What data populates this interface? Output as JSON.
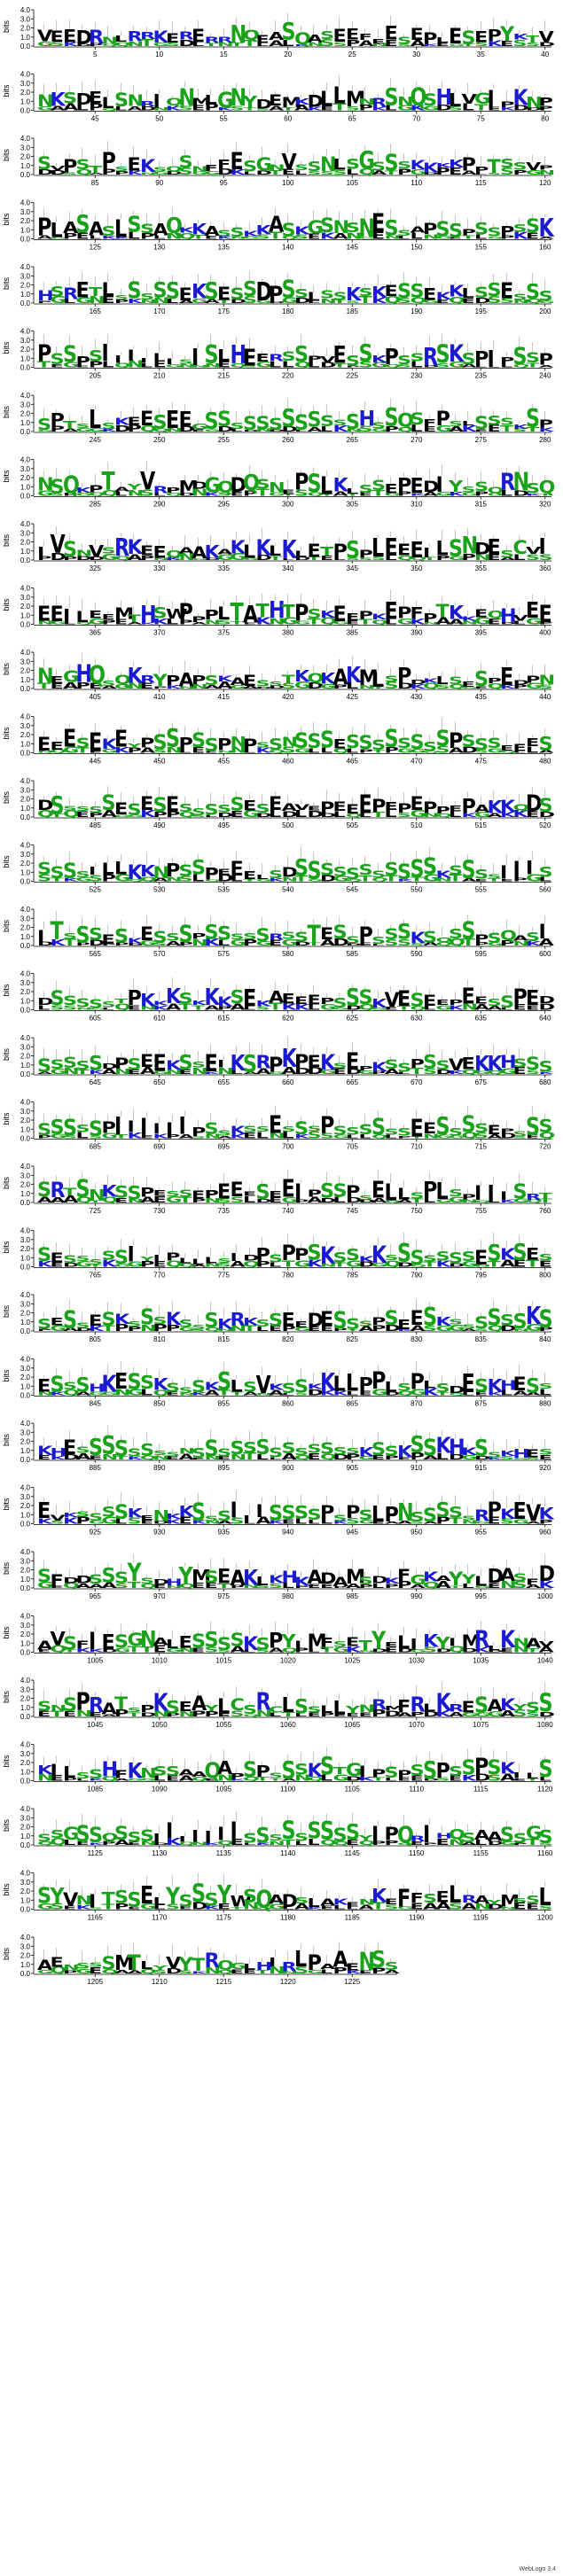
{
  "chart_data": {
    "type": "sequence-logo",
    "ylabel": "bits",
    "ytick_labels": [
      "0.0",
      "1.0",
      "2.0",
      "3.0",
      "4.0"
    ],
    "ylim": [
      0,
      4.3
    ],
    "positions_per_row": 40,
    "total_positions": 1228,
    "credit": "WebLogo 3.4",
    "colors": {
      "hydrophobic": "#000000",
      "polar": "#1aa31a",
      "basic": "#1a1ad0",
      "acidic": "#000000"
    },
    "rows": [
      {
        "start": 1,
        "ticks": [
          "5",
          "10",
          "15",
          "20",
          "25",
          "30",
          "35",
          "40"
        ],
        "seq": "VEEDRNLRRKERERRNQEASQASEEFEESEPLESEPYKT"
      },
      {
        "start": 41,
        "ticks": [
          "45",
          "50",
          "55",
          "60",
          "65",
          "70",
          "75",
          "80"
        ],
        "seq": "NKSDELSNRIQNMLGNYDEMKDLLMNRSNQSHLVGIPKNP"
      },
      {
        "start": 81,
        "ticks": [
          "85",
          "90",
          "95",
          "100",
          "105",
          "110",
          "115",
          "120"
        ],
        "seq": "SVPSTPSEKSQSNFFESGNVSSNLSGSSSKKKKPPTS"
      },
      {
        "start": 121,
        "ticks": [
          "125",
          "130",
          "135",
          "140",
          "145",
          "150",
          "155",
          "160"
        ],
        "seq": "PLASASLSSAQKKASSKKASKGSNSNESSAPSSPSSPSSK"
      },
      {
        "start": 161,
        "ticks": [
          "165",
          "170",
          "175",
          "180",
          "185",
          "190",
          "195",
          "200"
        ],
        "seq": "HSRETLSSSSSEKSESSDPSSLSSKSKESSEKKLSSESSS"
      },
      {
        "start": 201,
        "ticks": [
          "205",
          "210",
          "215",
          "220",
          "225",
          "230",
          "235",
          "240"
        ],
        "seq": "PSSPSIIIIIISISLHEERSSPVESSKPSSRSKSPI"
      },
      {
        "start": 241,
        "ticks": [
          "245",
          "250",
          "255",
          "260",
          "265",
          "270",
          "275",
          "280"
        ],
        "seq": "SPTSLSKEESEEGSSSSSSSSSSSSHSSQSFPSLSSSK"
      },
      {
        "start": 281,
        "ticks": [
          "285",
          "290",
          "295",
          "300",
          "305",
          "310",
          "315",
          "320"
        ],
        "seq": "NSQKPTAYVRPMDGQDQSNEPSLKLSSEPEDIYSSQR"
      },
      {
        "start": 321,
        "ticks": [
          "325",
          "330",
          "335",
          "340",
          "345",
          "350",
          "355",
          "360"
        ],
        "seq": "IVSNVSRKEEQAAKAKLKLKLETPSPLEEEILSNDESCV"
      },
      {
        "start": 361,
        "ticks": [
          "365",
          "370",
          "375",
          "380",
          "385",
          "390",
          "395",
          "400"
        ],
        "seq": "EEILEEMTHSWPPPLTATHTPSKEEPKEPFPTKKEQHV"
      },
      {
        "start": 401,
        "ticks": [
          "405",
          "410",
          "415",
          "420",
          "425",
          "430",
          "435",
          "440"
        ],
        "seq": "NEGHQSQKRYPAPSKAESSTKQKAKMLSPDKLSESPEDP"
      },
      {
        "start": 441,
        "ticks": [
          "445",
          "450",
          "455",
          "460",
          "465",
          "470",
          "475",
          "480"
        ],
        "seq": "EEESEKEYPSSPSSPNPSSNSSSESSSSSSSSPSSS"
      },
      {
        "start": 481,
        "ticks": [
          "485",
          "490",
          "495",
          "500",
          "505",
          "510",
          "515",
          "520"
        ],
        "seq": "DSSSSSESESESSSSSESEAVEPEEEPEPEPPEPAKKQ"
      },
      {
        "start": 521,
        "ticks": [
          "525",
          "530",
          "535",
          "540",
          "545",
          "550",
          "555",
          "560"
        ],
        "seq": "SSSSILLKKNPSSPEEELSDSSSSSSSSSSSKSSSSIII"
      },
      {
        "start": 561,
        "ticks": [
          "565",
          "570",
          "575",
          "580",
          "585",
          "590",
          "595",
          "600"
        ],
        "seq": "ITSSSESKESSSPSSSSSRSSTESSPSSSKSQSSPSQAS"
      },
      {
        "start": 601,
        "ticks": [
          "605",
          "610",
          "615",
          "620",
          "625",
          "630",
          "635",
          "640"
        ],
        "seq": "DSSSSSTPKKKSKKKSEKAEEEPSSSKVESEEPEESSPE"
      },
      {
        "start": 641,
        "ticks": [
          "645",
          "650",
          "655",
          "660",
          "665",
          "670",
          "675",
          "680"
        ],
        "seq": "SSSSSDPSEEKSSEIKSRPKPEKSEPKSSPSSVEKKHSS"
      },
      {
        "start": 681,
        "ticks": [
          "685",
          "690",
          "695",
          "700",
          "705",
          "710",
          "715",
          "720"
        ],
        "seq": "SSSSSPIIIIIIPSSKSSESSSPSSSSSSEESSSSEPS"
      },
      {
        "start": 721,
        "ticks": [
          "725",
          "730",
          "735",
          "740",
          "745",
          "750",
          "755",
          "760"
        ],
        "seq": "SRTSNKSSPESSEPEEESEEIPSSPSELLSPLSPIII"
      },
      {
        "start": 761,
        "ticks": [
          "765",
          "770",
          "775",
          "780",
          "785",
          "790",
          "795",
          "800"
        ],
        "seq": "SESSSSSIYIPLLLSIDPSPPSKSSKKSSSSSSSESK"
      },
      {
        "start": 801,
        "ticks": [
          "805",
          "810",
          "815",
          "820",
          "825",
          "830",
          "835",
          "840"
        ],
        "seq": "SESSESKSSSKSSSKRKSSEEDESSSPSEESKSSSSSSK"
      },
      {
        "start": 841,
        "ticks": [
          "845",
          "850",
          "855",
          "860",
          "865",
          "870",
          "875",
          "880"
        ],
        "seq": "ESSSHKESSKSSSKSLSVKSSKKLLPPLSPLSDESKH"
      },
      {
        "start": 881,
        "ticks": [
          "885",
          "890",
          "895",
          "900",
          "905",
          "910",
          "915",
          "920"
        ],
        "seq": "KHESSSSSSSSNSSSSSSSSSSSSSKSSKSSKHKSS"
      },
      {
        "start": 921,
        "ticks": [
          "925",
          "930",
          "935",
          "940",
          "945",
          "950",
          "955",
          "960"
        ],
        "seq": "EVKSSSSKENKKSSSIIISSSSPSPSLPNSSSSSRPK"
      },
      {
        "start": 961,
        "ticks": [
          "965",
          "970",
          "975",
          "980",
          "985",
          "990",
          "995",
          "1000"
        ],
        "seq": "SFDDSSSYSDHYMSEAKLKHKADAMSDKFGKAYYLDA"
      },
      {
        "start": 1001,
        "ticks": [
          "1005",
          "1010",
          "1015",
          "1020",
          "1025",
          "1030",
          "1035",
          "1040"
        ],
        "seq": "AVSFIESGNALESSSSKSPYIMFSETYELIKYIMRLKN"
      },
      {
        "start": 1041,
        "ticks": [
          "1045",
          "1050",
          "1055",
          "1060",
          "1065",
          "1070",
          "1075",
          "1080"
        ],
        "seq": "SNSPRATSPKSEAYLCSRCLSSLLYNRMFRLKRESAKYS"
      },
      {
        "start": 1081,
        "ticks": [
          "1085",
          "1090",
          "1095",
          "1100",
          "1105",
          "1110",
          "1115",
          "1120"
        ],
        "seq": "KILSSHFKNSSAAQAPSPSSSKSTGIPSPSSPSSPS"
      },
      {
        "start": 1121,
        "ticks": [
          "1125",
          "1130",
          "1135",
          "1140",
          "1145",
          "1150",
          "1155",
          "1160"
        ],
        "seq": "SSGSSQSSSIIIIIIISSSSSSSSSYIPQRIHQSAA"
      },
      {
        "start": 1161,
        "ticks": [
          "1165",
          "1170",
          "1175",
          "1180",
          "1185",
          "1190",
          "1195",
          "1200"
        ],
        "seq": "SYVNITSSELYSSSYWSQADSLAKENKEFFSELRAYMSSL"
      },
      {
        "start": 1201,
        "ticks": [
          "1205",
          "1210",
          "1215",
          "1220",
          "1225"
        ],
        "seq": "AENSSSMTLYVYTRQGLHIRLPA"
      }
    ]
  }
}
